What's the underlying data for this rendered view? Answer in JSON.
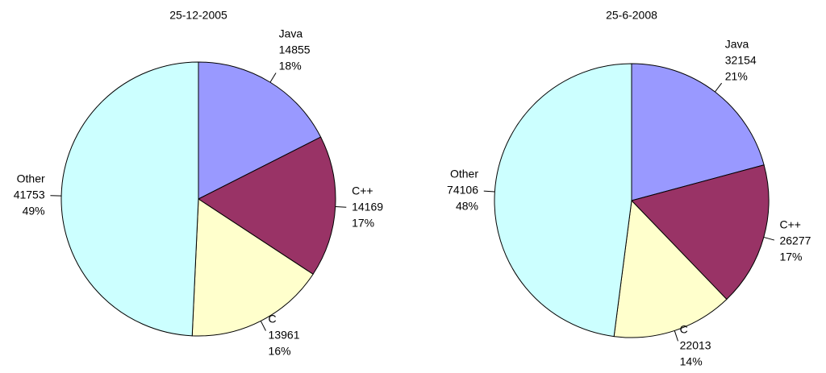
{
  "chart_data": [
    {
      "type": "pie",
      "title": "25-12-2005",
      "categories": [
        "Java",
        "C++",
        "C",
        "Other"
      ],
      "values": [
        14855,
        14169,
        13961,
        41753
      ],
      "percent_labels": [
        "18%",
        "17%",
        "16%",
        "49%"
      ],
      "colors": [
        "#9999ff",
        "#993366",
        "#ffffcc",
        "#ccffff"
      ]
    },
    {
      "type": "pie",
      "title": "25-6-2008",
      "categories": [
        "Java",
        "C++",
        "C",
        "Other"
      ],
      "values": [
        32154,
        26277,
        22013,
        74106
      ],
      "percent_labels": [
        "21%",
        "17%",
        "14%",
        "48%"
      ],
      "colors": [
        "#9999ff",
        "#993366",
        "#ffffcc",
        "#ccffff"
      ]
    }
  ]
}
